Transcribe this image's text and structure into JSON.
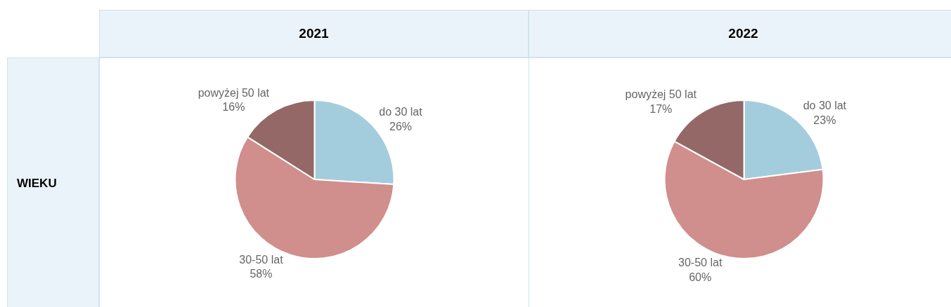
{
  "chart_data": [
    {
      "type": "pie",
      "title": "2021",
      "annotations": [
        "WIEKU"
      ],
      "categories": [
        "do 30 lat",
        "30-50 lat",
        "powyżej 50 lat"
      ],
      "values": [
        26,
        58,
        16
      ],
      "value_labels": [
        "26%",
        "58%",
        "16%"
      ],
      "colors": [
        "#a3cddc",
        "#d08e8c",
        "#946866"
      ]
    },
    {
      "type": "pie",
      "title": "2022",
      "categories": [
        "do 30 lat",
        "30-50 lat",
        "powyżej 50 lat"
      ],
      "values": [
        23,
        60,
        17
      ],
      "value_labels": [
        "23%",
        "60%",
        "17%"
      ],
      "colors": [
        "#a3cddc",
        "#d08e8c",
        "#946866"
      ]
    }
  ]
}
